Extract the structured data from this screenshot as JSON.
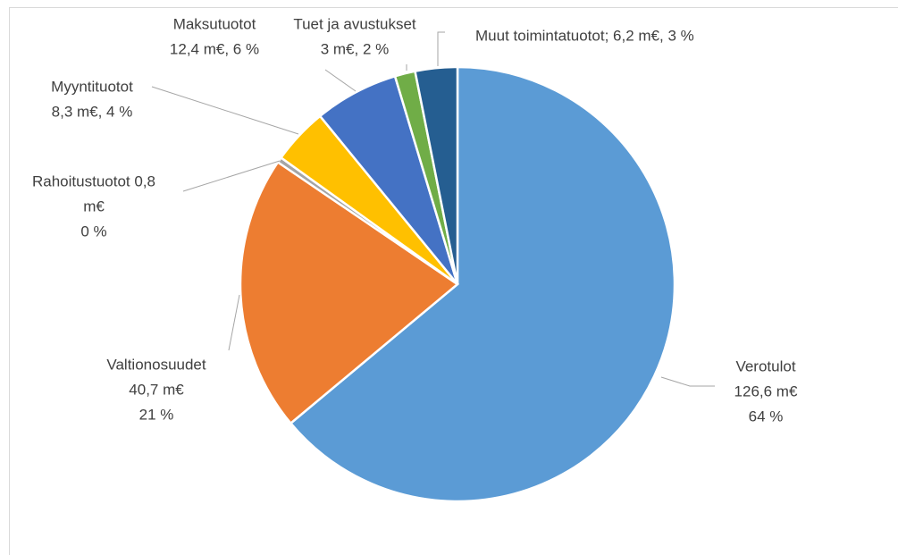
{
  "chart_data": {
    "type": "pie",
    "categories": [
      "Verotulot",
      "Valtionosuudet",
      "Rahoitustuotot",
      "Myyntituotot",
      "Maksutuotot",
      "Tuet ja avustukset",
      "Muut toimintatuotot"
    ],
    "values": [
      126.6,
      40.7,
      0.8,
      8.3,
      12.4,
      3,
      6.2
    ],
    "value_labels": [
      [
        "Verotulot",
        "126,6 m€",
        "64 %"
      ],
      [
        "Valtionosuudet",
        "40,7 m€",
        "21 %"
      ],
      [
        "Rahoitustuotot 0,8",
        "m€",
        "0 %"
      ],
      [
        "Myyntituotot",
        "8,3 m€,  4 %"
      ],
      [
        "Maksutuotot",
        "12,4 m€, 6 %"
      ],
      [
        "Tuet ja avustukset",
        "3 m€, 2 %"
      ],
      [
        "Muut toimintatuotot; 6,2 m€,  3 %"
      ]
    ],
    "colors": [
      "#5b9bd5",
      "#ed7d31",
      "#a5a5a5",
      "#ffc000",
      "#4472c4",
      "#70ad47",
      "#255e91"
    ]
  }
}
